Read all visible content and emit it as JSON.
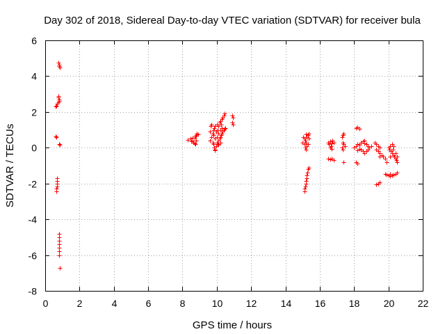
{
  "chart_data": {
    "type": "scatter",
    "title": "Day 302 of 2018, Sidereal Day-to-day VTEC variation (SDTVAR) for receiver bula",
    "xlabel": "GPS time / hours",
    "ylabel": "SDTVAR / TECUs",
    "xlim": [
      0,
      22
    ],
    "ylim": [
      -8,
      6
    ],
    "xticks": [
      0,
      2,
      4,
      6,
      8,
      10,
      12,
      14,
      16,
      18,
      20,
      22
    ],
    "yticks": [
      -8,
      -6,
      -4,
      -2,
      0,
      2,
      4,
      6
    ],
    "grid": true,
    "marker": "+",
    "color": "#ff0000",
    "series": [
      {
        "name": "SDTVAR",
        "points": [
          [
            0.78,
            4.75
          ],
          [
            0.8,
            4.65
          ],
          [
            0.82,
            4.55
          ],
          [
            0.84,
            4.5
          ],
          [
            0.75,
            2.9
          ],
          [
            0.78,
            2.8
          ],
          [
            0.8,
            2.7
          ],
          [
            0.82,
            2.6
          ],
          [
            0.76,
            2.55
          ],
          [
            0.7,
            2.45
          ],
          [
            0.66,
            2.35
          ],
          [
            0.62,
            2.3
          ],
          [
            0.62,
            0.65
          ],
          [
            0.66,
            0.6
          ],
          [
            0.8,
            0.2
          ],
          [
            0.84,
            0.15
          ],
          [
            0.7,
            -1.7
          ],
          [
            0.69,
            -1.85
          ],
          [
            0.68,
            -2.0
          ],
          [
            0.67,
            -2.15
          ],
          [
            0.66,
            -2.3
          ],
          [
            0.65,
            -2.45
          ],
          [
            0.8,
            -4.8
          ],
          [
            0.8,
            -5.0
          ],
          [
            0.8,
            -5.2
          ],
          [
            0.8,
            -5.4
          ],
          [
            0.8,
            -5.6
          ],
          [
            0.8,
            -5.8
          ],
          [
            0.8,
            -6.0
          ],
          [
            0.86,
            -6.7
          ],
          [
            8.3,
            0.45
          ],
          [
            8.45,
            0.5
          ],
          [
            8.5,
            0.35
          ],
          [
            8.6,
            0.4
          ],
          [
            8.65,
            0.3
          ],
          [
            8.7,
            0.55
          ],
          [
            8.75,
            0.65
          ],
          [
            8.8,
            0.7
          ],
          [
            8.85,
            0.8
          ],
          [
            8.9,
            0.75
          ],
          [
            8.6,
            0.55
          ],
          [
            8.8,
            0.4
          ],
          [
            8.7,
            0.25
          ],
          [
            8.75,
            0.2
          ],
          [
            9.6,
            0.4
          ],
          [
            9.7,
            0.6
          ],
          [
            9.75,
            0.8
          ],
          [
            9.8,
            1.0
          ],
          [
            9.85,
            1.1
          ],
          [
            9.9,
            1.2
          ],
          [
            9.95,
            0.9
          ],
          [
            10.0,
            1.3
          ],
          [
            10.05,
            1.0
          ],
          [
            10.1,
            1.2
          ],
          [
            10.15,
            1.4
          ],
          [
            10.2,
            1.5
          ],
          [
            10.25,
            1.3
          ],
          [
            10.3,
            1.6
          ],
          [
            10.35,
            1.7
          ],
          [
            10.4,
            1.8
          ],
          [
            10.45,
            1.9
          ],
          [
            10.3,
            1.1
          ],
          [
            10.2,
            1.0
          ],
          [
            10.1,
            0.8
          ],
          [
            10.0,
            0.6
          ],
          [
            9.9,
            0.5
          ],
          [
            9.8,
            0.2
          ],
          [
            9.85,
            0.0
          ],
          [
            9.9,
            -0.1
          ],
          [
            9.95,
            0.1
          ],
          [
            10.0,
            0.3
          ],
          [
            10.05,
            0.2
          ],
          [
            10.1,
            0.4
          ],
          [
            10.15,
            0.5
          ],
          [
            10.2,
            0.6
          ],
          [
            10.25,
            0.7
          ],
          [
            10.3,
            0.8
          ],
          [
            10.35,
            0.9
          ],
          [
            10.4,
            1.0
          ],
          [
            10.45,
            1.05
          ],
          [
            10.5,
            1.1
          ],
          [
            10.2,
            0.3
          ],
          [
            10.1,
            0.15
          ],
          [
            9.9,
            -0.15
          ],
          [
            9.6,
            0.9
          ],
          [
            9.65,
            1.2
          ],
          [
            9.7,
            1.3
          ],
          [
            9.8,
            0.7
          ],
          [
            9.75,
            0.3
          ],
          [
            10.9,
            1.8
          ],
          [
            10.95,
            1.7
          ],
          [
            10.9,
            1.4
          ],
          [
            10.95,
            1.3
          ],
          [
            15.1,
            0.5
          ],
          [
            15.15,
            0.4
          ],
          [
            15.2,
            0.3
          ],
          [
            15.25,
            0.6
          ],
          [
            15.3,
            0.7
          ],
          [
            15.35,
            0.8
          ],
          [
            15.1,
            0.2
          ],
          [
            15.15,
            0.0
          ],
          [
            15.2,
            -0.1
          ],
          [
            15.25,
            0.1
          ],
          [
            15.3,
            0.2
          ],
          [
            15.0,
            0.3
          ],
          [
            15.05,
            0.6
          ],
          [
            15.2,
            0.75
          ],
          [
            15.35,
            0.5
          ],
          [
            15.3,
            -1.2
          ],
          [
            15.27,
            -1.4
          ],
          [
            15.25,
            -1.55
          ],
          [
            15.22,
            -1.7
          ],
          [
            15.2,
            -1.85
          ],
          [
            15.18,
            -2.0
          ],
          [
            15.15,
            -2.15
          ],
          [
            15.12,
            -2.3
          ],
          [
            15.1,
            -2.45
          ],
          [
            15.35,
            -1.1
          ],
          [
            16.5,
            0.3
          ],
          [
            16.55,
            0.2
          ],
          [
            16.6,
            0.35
          ],
          [
            16.65,
            0.1
          ],
          [
            16.7,
            0.25
          ],
          [
            16.75,
            0.4
          ],
          [
            16.8,
            0.3
          ],
          [
            16.6,
            0.0
          ],
          [
            16.7,
            -0.05
          ],
          [
            16.5,
            -0.6
          ],
          [
            16.6,
            -0.65
          ],
          [
            16.7,
            -0.6
          ],
          [
            16.8,
            -0.7
          ],
          [
            17.3,
            0.6
          ],
          [
            17.35,
            0.7
          ],
          [
            17.4,
            0.8
          ],
          [
            17.35,
            0.3
          ],
          [
            17.4,
            0.2
          ],
          [
            17.45,
            0.1
          ],
          [
            17.3,
            0.0
          ],
          [
            17.35,
            -0.1
          ],
          [
            17.4,
            -0.8
          ],
          [
            18.1,
            1.1
          ],
          [
            18.2,
            1.15
          ],
          [
            18.3,
            1.05
          ],
          [
            18.0,
            0.0
          ],
          [
            18.1,
            0.1
          ],
          [
            18.2,
            0.2
          ],
          [
            18.3,
            0.15
          ],
          [
            18.4,
            0.3
          ],
          [
            18.5,
            0.35
          ],
          [
            18.6,
            0.25
          ],
          [
            18.7,
            0.2
          ],
          [
            18.8,
            0.1
          ],
          [
            18.9,
            0.0
          ],
          [
            19.0,
            0.1
          ],
          [
            18.4,
            -0.1
          ],
          [
            18.5,
            -0.2
          ],
          [
            18.6,
            -0.3
          ],
          [
            18.7,
            -0.2
          ],
          [
            18.8,
            -0.1
          ],
          [
            18.3,
            -0.05
          ],
          [
            18.2,
            -0.15
          ],
          [
            18.6,
            0.4
          ],
          [
            18.1,
            -0.8
          ],
          [
            18.2,
            -0.9
          ],
          [
            19.2,
            0.3
          ],
          [
            19.3,
            0.2
          ],
          [
            19.4,
            0.1
          ],
          [
            19.5,
            0.0
          ],
          [
            19.3,
            -0.1
          ],
          [
            19.4,
            -0.2
          ],
          [
            19.5,
            -0.3
          ],
          [
            19.6,
            -0.4
          ],
          [
            19.7,
            -0.5
          ],
          [
            19.8,
            -0.6
          ],
          [
            19.9,
            -0.8
          ],
          [
            19.5,
            -0.5
          ],
          [
            19.3,
            -2.05
          ],
          [
            19.4,
            -2.0
          ],
          [
            19.5,
            -1.95
          ],
          [
            19.8,
            -1.45
          ],
          [
            19.9,
            -1.5
          ],
          [
            20.0,
            -1.55
          ],
          [
            20.1,
            -1.6
          ],
          [
            20.2,
            -1.55
          ],
          [
            20.3,
            -1.5
          ],
          [
            20.4,
            -1.45
          ],
          [
            20.5,
            -1.4
          ],
          [
            20.1,
            -1.45
          ],
          [
            20.0,
            0.0
          ],
          [
            20.05,
            -0.1
          ],
          [
            20.1,
            0.1
          ],
          [
            20.15,
            -0.2
          ],
          [
            20.2,
            -0.3
          ],
          [
            20.25,
            -0.1
          ],
          [
            20.3,
            -0.4
          ],
          [
            20.35,
            -0.5
          ],
          [
            20.4,
            -0.6
          ],
          [
            20.45,
            -0.7
          ],
          [
            20.5,
            -0.8
          ],
          [
            20.5,
            -0.5
          ],
          [
            20.4,
            -0.3
          ],
          [
            20.3,
            0.1
          ],
          [
            20.2,
            0.2
          ],
          [
            20.1,
            -0.5
          ]
        ]
      }
    ]
  }
}
